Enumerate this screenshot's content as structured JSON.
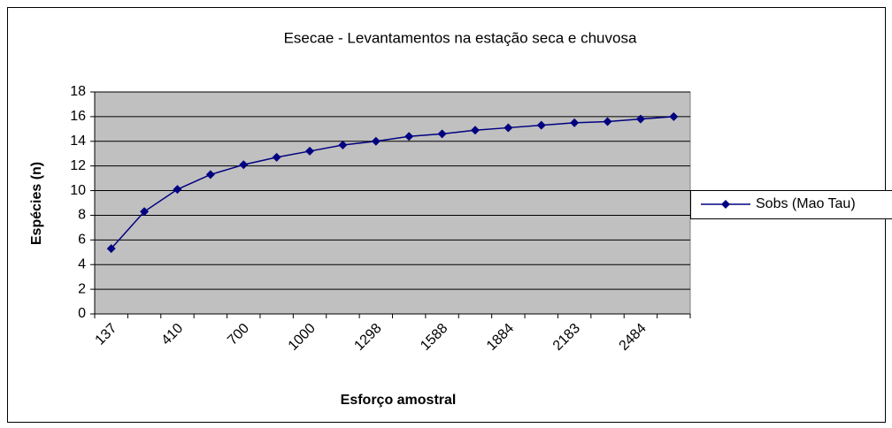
{
  "chart_data": {
    "type": "line",
    "title": "Esecae - Levantamentos na estação seca e chuvosa",
    "x_label": "Esforço amostral",
    "y_label": "Espécies (n)",
    "categories": [
      "137",
      null,
      "410",
      null,
      "700",
      null,
      "1000",
      null,
      "1298",
      null,
      "1588",
      null,
      "1884",
      null,
      "2183",
      null,
      "2484",
      null
    ],
    "series": [
      {
        "name": "Sobs (Mao Tau)",
        "color": "#000080",
        "values": [
          5.3,
          8.3,
          10.1,
          11.3,
          12.1,
          12.7,
          13.2,
          13.7,
          14.0,
          14.4,
          14.6,
          14.9,
          15.1,
          15.3,
          15.5,
          15.6,
          15.8,
          16.0
        ]
      }
    ],
    "ylim": [
      0,
      18
    ],
    "yticks": [
      0,
      2,
      4,
      6,
      8,
      10,
      12,
      14,
      16,
      18
    ],
    "grid": true,
    "legend": "right",
    "plot_background": "#c0c0c0"
  }
}
